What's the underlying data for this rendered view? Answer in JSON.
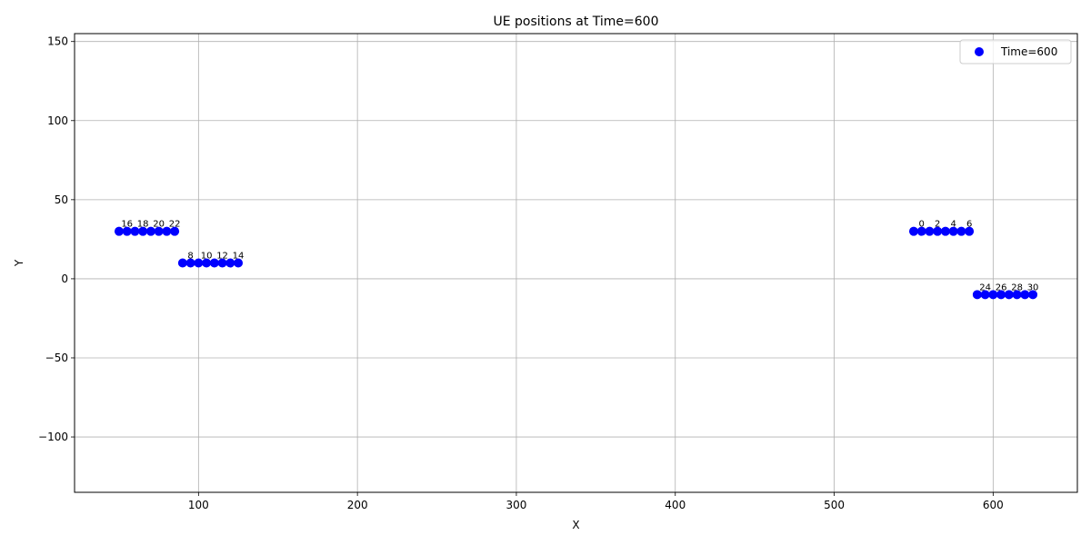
{
  "chart_data": {
    "type": "scatter",
    "title": "UE positions at Time=600",
    "xlabel": "X",
    "ylabel": "Y",
    "xlim": [
      22,
      653
    ],
    "ylim": [
      -135,
      155
    ],
    "xticks": [
      100,
      200,
      300,
      400,
      500,
      600
    ],
    "yticks": [
      -100,
      -50,
      0,
      50,
      100,
      150
    ],
    "xtick_labels": [
      "100",
      "200",
      "300",
      "400",
      "500",
      "600"
    ],
    "ytick_labels": [
      "−100",
      "−50",
      "0",
      "50",
      "100",
      "150"
    ],
    "grid": true,
    "legend_position": "top-right",
    "series": [
      {
        "name": "Time=600",
        "color": "#0000ff",
        "points": [
          {
            "id": 0,
            "x": 550,
            "y": 30
          },
          {
            "id": 1,
            "x": 555,
            "y": 30
          },
          {
            "id": 2,
            "x": 560,
            "y": 30
          },
          {
            "id": 3,
            "x": 565,
            "y": 30
          },
          {
            "id": 4,
            "x": 570,
            "y": 30
          },
          {
            "id": 5,
            "x": 575,
            "y": 30
          },
          {
            "id": 6,
            "x": 580,
            "y": 30
          },
          {
            "id": 7,
            "x": 585,
            "y": 30
          },
          {
            "id": 8,
            "x": 90,
            "y": 10
          },
          {
            "id": 9,
            "x": 95,
            "y": 10
          },
          {
            "id": 10,
            "x": 100,
            "y": 10
          },
          {
            "id": 11,
            "x": 105,
            "y": 10
          },
          {
            "id": 12,
            "x": 110,
            "y": 10
          },
          {
            "id": 13,
            "x": 115,
            "y": 10
          },
          {
            "id": 14,
            "x": 120,
            "y": 10
          },
          {
            "id": 15,
            "x": 125,
            "y": 10
          },
          {
            "id": 16,
            "x": 50,
            "y": 30
          },
          {
            "id": 17,
            "x": 55,
            "y": 30
          },
          {
            "id": 18,
            "x": 60,
            "y": 30
          },
          {
            "id": 19,
            "x": 65,
            "y": 30
          },
          {
            "id": 20,
            "x": 70,
            "y": 30
          },
          {
            "id": 21,
            "x": 75,
            "y": 30
          },
          {
            "id": 22,
            "x": 80,
            "y": 30
          },
          {
            "id": 23,
            "x": 85,
            "y": 30
          },
          {
            "id": 24,
            "x": 590,
            "y": -10
          },
          {
            "id": 25,
            "x": 595,
            "y": -10
          },
          {
            "id": 26,
            "x": 600,
            "y": -10
          },
          {
            "id": 27,
            "x": 605,
            "y": -10
          },
          {
            "id": 28,
            "x": 610,
            "y": -10
          },
          {
            "id": 29,
            "x": 615,
            "y": -10
          },
          {
            "id": 30,
            "x": 620,
            "y": -10
          },
          {
            "id": 31,
            "x": 625,
            "y": -10
          }
        ],
        "labels": [
          {
            "text": "0",
            "x": 555,
            "y": 30
          },
          {
            "text": "2",
            "x": 565,
            "y": 30
          },
          {
            "text": "4",
            "x": 575,
            "y": 30
          },
          {
            "text": "6",
            "x": 585,
            "y": 30
          },
          {
            "text": "8",
            "x": 95,
            "y": 10
          },
          {
            "text": "10",
            "x": 105,
            "y": 10
          },
          {
            "text": "12",
            "x": 115,
            "y": 10
          },
          {
            "text": "14",
            "x": 125,
            "y": 10
          },
          {
            "text": "16",
            "x": 55,
            "y": 30
          },
          {
            "text": "18",
            "x": 65,
            "y": 30
          },
          {
            "text": "20",
            "x": 75,
            "y": 30
          },
          {
            "text": "22",
            "x": 85,
            "y": 30
          },
          {
            "text": "24",
            "x": 595,
            "y": -10
          },
          {
            "text": "26",
            "x": 605,
            "y": -10
          },
          {
            "text": "28",
            "x": 615,
            "y": -10
          },
          {
            "text": "30",
            "x": 625,
            "y": -10
          }
        ]
      }
    ]
  }
}
